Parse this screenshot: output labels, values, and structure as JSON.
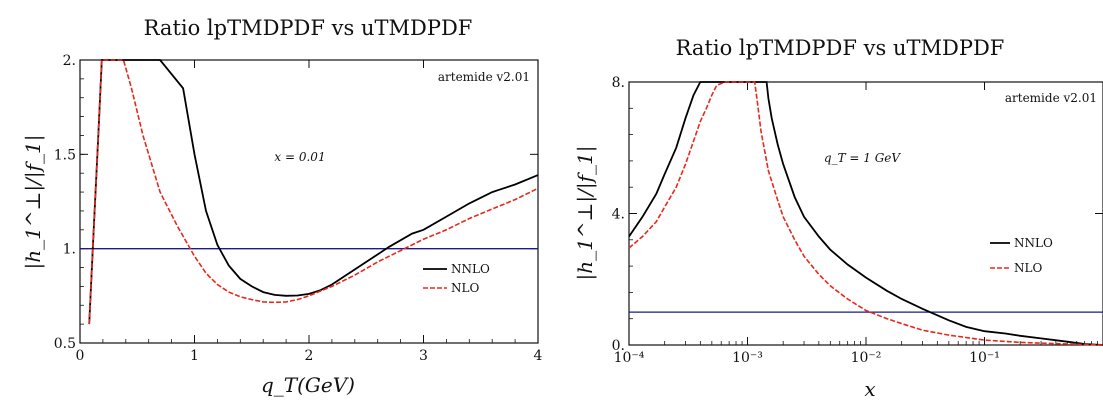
{
  "chart_data": [
    {
      "type": "line",
      "title": "Ratio lpTMDPDF vs uTMDPDF",
      "xlabel": "q_T(GeV)",
      "ylabel": "|h_1^⊥|/|f_1|",
      "xlim": [
        0,
        4
      ],
      "ylim": [
        0.5,
        2.0
      ],
      "xscale": "linear",
      "x_ticks": [
        0,
        1,
        2,
        3,
        4
      ],
      "x_tick_labels": [
        "0",
        "1",
        "2",
        "3",
        "4"
      ],
      "y_ticks": [
        0.5,
        1.0,
        1.5,
        2.0
      ],
      "y_tick_labels": [
        "0.5",
        "1.",
        "1.5",
        "2."
      ],
      "annotations": [
        "artemide v2.01",
        "x = 0.01"
      ],
      "reference_line": 1.0,
      "legend_position": "right-middle",
      "series": [
        {
          "name": "NNLO",
          "color": "#000000",
          "style": "solid",
          "x": [
            0.08,
            0.12,
            0.16,
            0.19,
            0.24,
            0.38,
            0.5,
            0.7,
            0.9,
            1.0,
            1.1,
            1.2,
            1.3,
            1.4,
            1.5,
            1.6,
            1.7,
            1.8,
            1.9,
            2.0,
            2.1,
            2.2,
            2.3,
            2.5,
            2.7,
            2.9,
            3.0,
            3.2,
            3.4,
            3.6,
            3.65,
            3.8,
            4.0
          ],
          "y": [
            0.6,
            1.1,
            1.6,
            2.0,
            2.0,
            2.0,
            2.0,
            2.0,
            1.85,
            1.5,
            1.2,
            1.02,
            0.91,
            0.84,
            0.8,
            0.77,
            0.755,
            0.75,
            0.752,
            0.76,
            0.78,
            0.81,
            0.85,
            0.93,
            1.01,
            1.08,
            1.1,
            1.17,
            1.24,
            1.3,
            1.31,
            1.34,
            1.39
          ]
        },
        {
          "name": "NLO",
          "color": "#e8281c",
          "style": "dashed",
          "x": [
            0.08,
            0.12,
            0.16,
            0.19,
            0.24,
            0.38,
            0.45,
            0.55,
            0.7,
            0.85,
            1.0,
            1.1,
            1.2,
            1.3,
            1.4,
            1.5,
            1.6,
            1.7,
            1.8,
            1.9,
            2.0,
            2.2,
            2.4,
            2.6,
            2.8,
            3.0,
            3.2,
            3.4,
            3.6,
            3.8,
            4.0
          ],
          "y": [
            0.6,
            1.1,
            1.6,
            2.0,
            2.0,
            2.0,
            1.85,
            1.6,
            1.3,
            1.12,
            0.96,
            0.87,
            0.81,
            0.77,
            0.745,
            0.73,
            0.718,
            0.715,
            0.718,
            0.73,
            0.75,
            0.8,
            0.86,
            0.93,
            0.99,
            1.05,
            1.1,
            1.16,
            1.21,
            1.26,
            1.32
          ]
        }
      ]
    },
    {
      "type": "line",
      "title": "Ratio lpTMDPDF vs uTMDPDF",
      "xlabel": "x",
      "ylabel": "|h_1^⊥|/|f_1|",
      "xlim": [
        0.0001,
        1.0
      ],
      "ylim": [
        0,
        8
      ],
      "xscale": "log",
      "x_ticks": [
        0.0001,
        0.001,
        0.01,
        0.1
      ],
      "x_tick_labels": [
        "10⁻⁴",
        "10⁻³",
        "10⁻²",
        "10⁻¹"
      ],
      "y_ticks": [
        0,
        4,
        8
      ],
      "y_tick_labels": [
        "0.",
        "4.",
        "8."
      ],
      "annotations": [
        "artemide v2.01",
        "q_T = 1 GeV"
      ],
      "reference_line": 1.0,
      "legend_position": "right-middle",
      "series": [
        {
          "name": "NNLO",
          "color": "#000000",
          "style": "solid",
          "x": [
            0.0001,
            0.00013,
            0.00017,
            0.0002,
            0.00025,
            0.0003,
            0.00035,
            0.0004,
            0.00042,
            0.00145,
            0.0015,
            0.0016,
            0.0018,
            0.002,
            0.0025,
            0.003,
            0.004,
            0.005,
            0.007,
            0.01,
            0.015,
            0.02,
            0.03,
            0.05,
            0.07,
            0.1,
            0.15,
            0.2,
            0.3,
            0.5,
            0.7,
            1.0
          ],
          "y": [
            3.3,
            3.9,
            4.6,
            5.2,
            6.0,
            6.9,
            7.6,
            8.0,
            8.0,
            8.0,
            7.5,
            6.9,
            6.1,
            5.5,
            4.5,
            3.9,
            3.3,
            2.9,
            2.45,
            2.05,
            1.65,
            1.4,
            1.1,
            0.75,
            0.55,
            0.42,
            0.35,
            0.28,
            0.2,
            0.1,
            0.03,
            0.0
          ]
        },
        {
          "name": "NLO",
          "color": "#e8281c",
          "style": "dashed",
          "x": [
            0.0001,
            0.00013,
            0.00017,
            0.0002,
            0.00025,
            0.0003,
            0.00035,
            0.0004,
            0.00045,
            0.0005,
            0.00055,
            0.00065,
            0.00115,
            0.0012,
            0.00125,
            0.0013,
            0.0015,
            0.0018,
            0.002,
            0.0025,
            0.003,
            0.004,
            0.005,
            0.007,
            0.01,
            0.015,
            0.02,
            0.03,
            0.05,
            0.1,
            0.2,
            0.5,
            1.0
          ],
          "y": [
            2.95,
            3.3,
            3.75,
            4.2,
            4.8,
            5.5,
            6.2,
            6.8,
            7.2,
            7.6,
            7.9,
            8.0,
            8.0,
            7.5,
            7.0,
            6.5,
            5.3,
            4.4,
            3.9,
            3.2,
            2.7,
            2.15,
            1.8,
            1.4,
            1.05,
            0.8,
            0.65,
            0.45,
            0.3,
            0.15,
            0.08,
            0.03,
            0.0
          ]
        }
      ]
    }
  ]
}
